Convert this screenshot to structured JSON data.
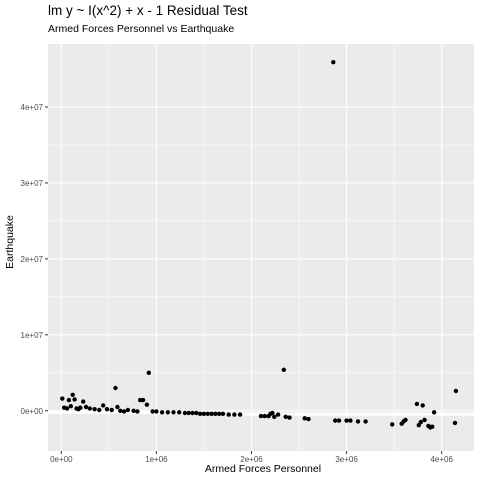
{
  "chart_data": {
    "type": "scatter",
    "title": "lm y ~ I(x^2) + x - 1 Residual Test",
    "subtitle": "Armed Forces Personnel vs Earthquake",
    "xlabel": "Armed Forces Personnel",
    "ylabel": "Earthquake",
    "xlim": [
      -140000,
      4340000
    ],
    "ylim": [
      -5300000,
      48300000
    ],
    "x_ticks": [
      0,
      1000000,
      2000000,
      3000000,
      4000000
    ],
    "x_tick_labels": [
      "0e+00",
      "1e+06",
      "2e+06",
      "3e+06",
      "4e+06"
    ],
    "y_ticks": [
      0,
      10000000,
      20000000,
      30000000,
      40000000
    ],
    "y_tick_labels": [
      "0e+00",
      "1e+07",
      "2e+07",
      "3e+07",
      "4e+07"
    ],
    "grid": true,
    "colors": {
      "panel": "#ebebeb",
      "grid_major": "#ffffff",
      "point": "#000000"
    },
    "points": [
      [
        10000,
        1600000
      ],
      [
        30000,
        400000
      ],
      [
        60000,
        300000
      ],
      [
        80000,
        1400000
      ],
      [
        100000,
        600000
      ],
      [
        120000,
        2100000
      ],
      [
        140000,
        1500000
      ],
      [
        160000,
        300000
      ],
      [
        180000,
        200000
      ],
      [
        200000,
        400000
      ],
      [
        230000,
        1200000
      ],
      [
        260000,
        500000
      ],
      [
        300000,
        300000
      ],
      [
        350000,
        200000
      ],
      [
        400000,
        100000
      ],
      [
        440000,
        700000
      ],
      [
        480000,
        200000
      ],
      [
        530000,
        100000
      ],
      [
        570000,
        3000000
      ],
      [
        590000,
        500000
      ],
      [
        620000,
        0
      ],
      [
        660000,
        -100000
      ],
      [
        700000,
        100000
      ],
      [
        760000,
        0
      ],
      [
        800000,
        -100000
      ],
      [
        830000,
        1400000
      ],
      [
        860000,
        1400000
      ],
      [
        900000,
        800000
      ],
      [
        920000,
        5000000
      ],
      [
        960000,
        -100000
      ],
      [
        1000000,
        -100000
      ],
      [
        1060000,
        -200000
      ],
      [
        1120000,
        -200000
      ],
      [
        1180000,
        -200000
      ],
      [
        1240000,
        -200000
      ],
      [
        1300000,
        -300000
      ],
      [
        1340000,
        -300000
      ],
      [
        1380000,
        -300000
      ],
      [
        1420000,
        -300000
      ],
      [
        1460000,
        -400000
      ],
      [
        1500000,
        -400000
      ],
      [
        1540000,
        -400000
      ],
      [
        1580000,
        -400000
      ],
      [
        1620000,
        -400000
      ],
      [
        1660000,
        -400000
      ],
      [
        1700000,
        -400000
      ],
      [
        1760000,
        -500000
      ],
      [
        1820000,
        -500000
      ],
      [
        1880000,
        -500000
      ],
      [
        2100000,
        -700000
      ],
      [
        2140000,
        -700000
      ],
      [
        2180000,
        -700000
      ],
      [
        2200000,
        -400000
      ],
      [
        2220000,
        -300000
      ],
      [
        2240000,
        -800000
      ],
      [
        2280000,
        -500000
      ],
      [
        2340000,
        5400000
      ],
      [
        2360000,
        -800000
      ],
      [
        2400000,
        -900000
      ],
      [
        2560000,
        -1000000
      ],
      [
        2600000,
        -1100000
      ],
      [
        2860000,
        45900000
      ],
      [
        2880000,
        -1300000
      ],
      [
        2920000,
        -1300000
      ],
      [
        3000000,
        -1300000
      ],
      [
        3040000,
        -1300000
      ],
      [
        3120000,
        -1400000
      ],
      [
        3200000,
        -1400000
      ],
      [
        3480000,
        -1800000
      ],
      [
        3580000,
        -1700000
      ],
      [
        3600000,
        -1400000
      ],
      [
        3620000,
        -1200000
      ],
      [
        3740000,
        900000
      ],
      [
        3760000,
        -1900000
      ],
      [
        3780000,
        -1500000
      ],
      [
        3800000,
        700000
      ],
      [
        3820000,
        -1200000
      ],
      [
        3860000,
        -2000000
      ],
      [
        3880000,
        -2200000
      ],
      [
        3900000,
        -2100000
      ],
      [
        3920000,
        -200000
      ],
      [
        4140000,
        -1600000
      ],
      [
        4150000,
        2600000
      ]
    ],
    "fit_line": [
      [
        -140000,
        -200000
      ],
      [
        1000000,
        -260000
      ],
      [
        2000000,
        -440000
      ],
      [
        3000000,
        -440000
      ],
      [
        4340000,
        -440000
      ]
    ]
  }
}
